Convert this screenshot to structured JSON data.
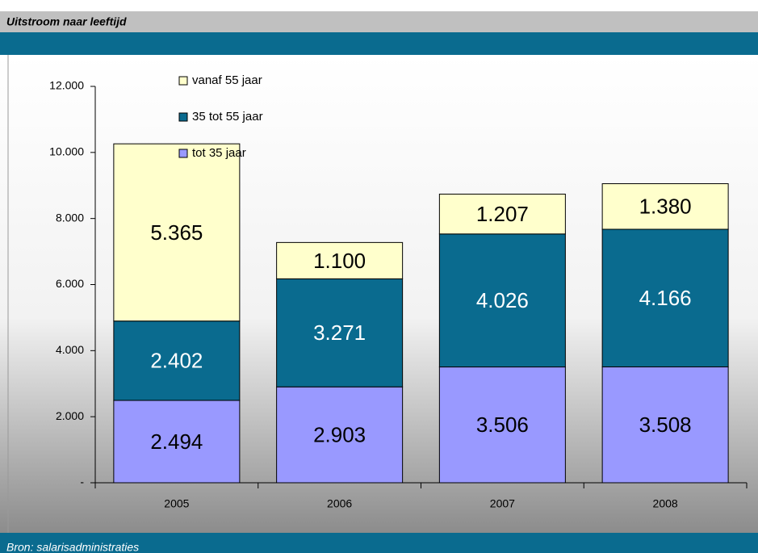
{
  "chart_data": {
    "type": "stacked_bar",
    "title": "Uitstroom naar leeftijd",
    "source": "Bron: salarisadministraties",
    "categories": [
      "2005",
      "2006",
      "2007",
      "2008"
    ],
    "series": [
      {
        "name": "tot 35 jaar",
        "color": "#9999ff",
        "values": [
          2494,
          2903,
          3506,
          3508
        ],
        "value_labels": [
          "2.494",
          "2.903",
          "3.506",
          "3.508"
        ]
      },
      {
        "name": "35 tot 55 jaar",
        "color": "#0a6b8f",
        "values": [
          2402,
          3271,
          4026,
          4166
        ],
        "value_labels": [
          "2.402",
          "3.271",
          "4.026",
          "4.166"
        ]
      },
      {
        "name": "vanaf 55 jaar",
        "color": "#ffffcc",
        "values": [
          5365,
          1100,
          1207,
          1380
        ],
        "value_labels": [
          "5.365",
          "1.100",
          "1.207",
          "1.380"
        ]
      }
    ],
    "ylim": [
      0,
      12000
    ],
    "yticks": [
      {
        "value": 0,
        "label": "-"
      },
      {
        "value": 2000,
        "label": "2.000"
      },
      {
        "value": 4000,
        "label": "4.000"
      },
      {
        "value": 6000,
        "label": "6.000"
      },
      {
        "value": 8000,
        "label": "8.000"
      },
      {
        "value": 10000,
        "label": "10.000"
      },
      {
        "value": 12000,
        "label": "12.000"
      }
    ],
    "legend": "top-left"
  }
}
